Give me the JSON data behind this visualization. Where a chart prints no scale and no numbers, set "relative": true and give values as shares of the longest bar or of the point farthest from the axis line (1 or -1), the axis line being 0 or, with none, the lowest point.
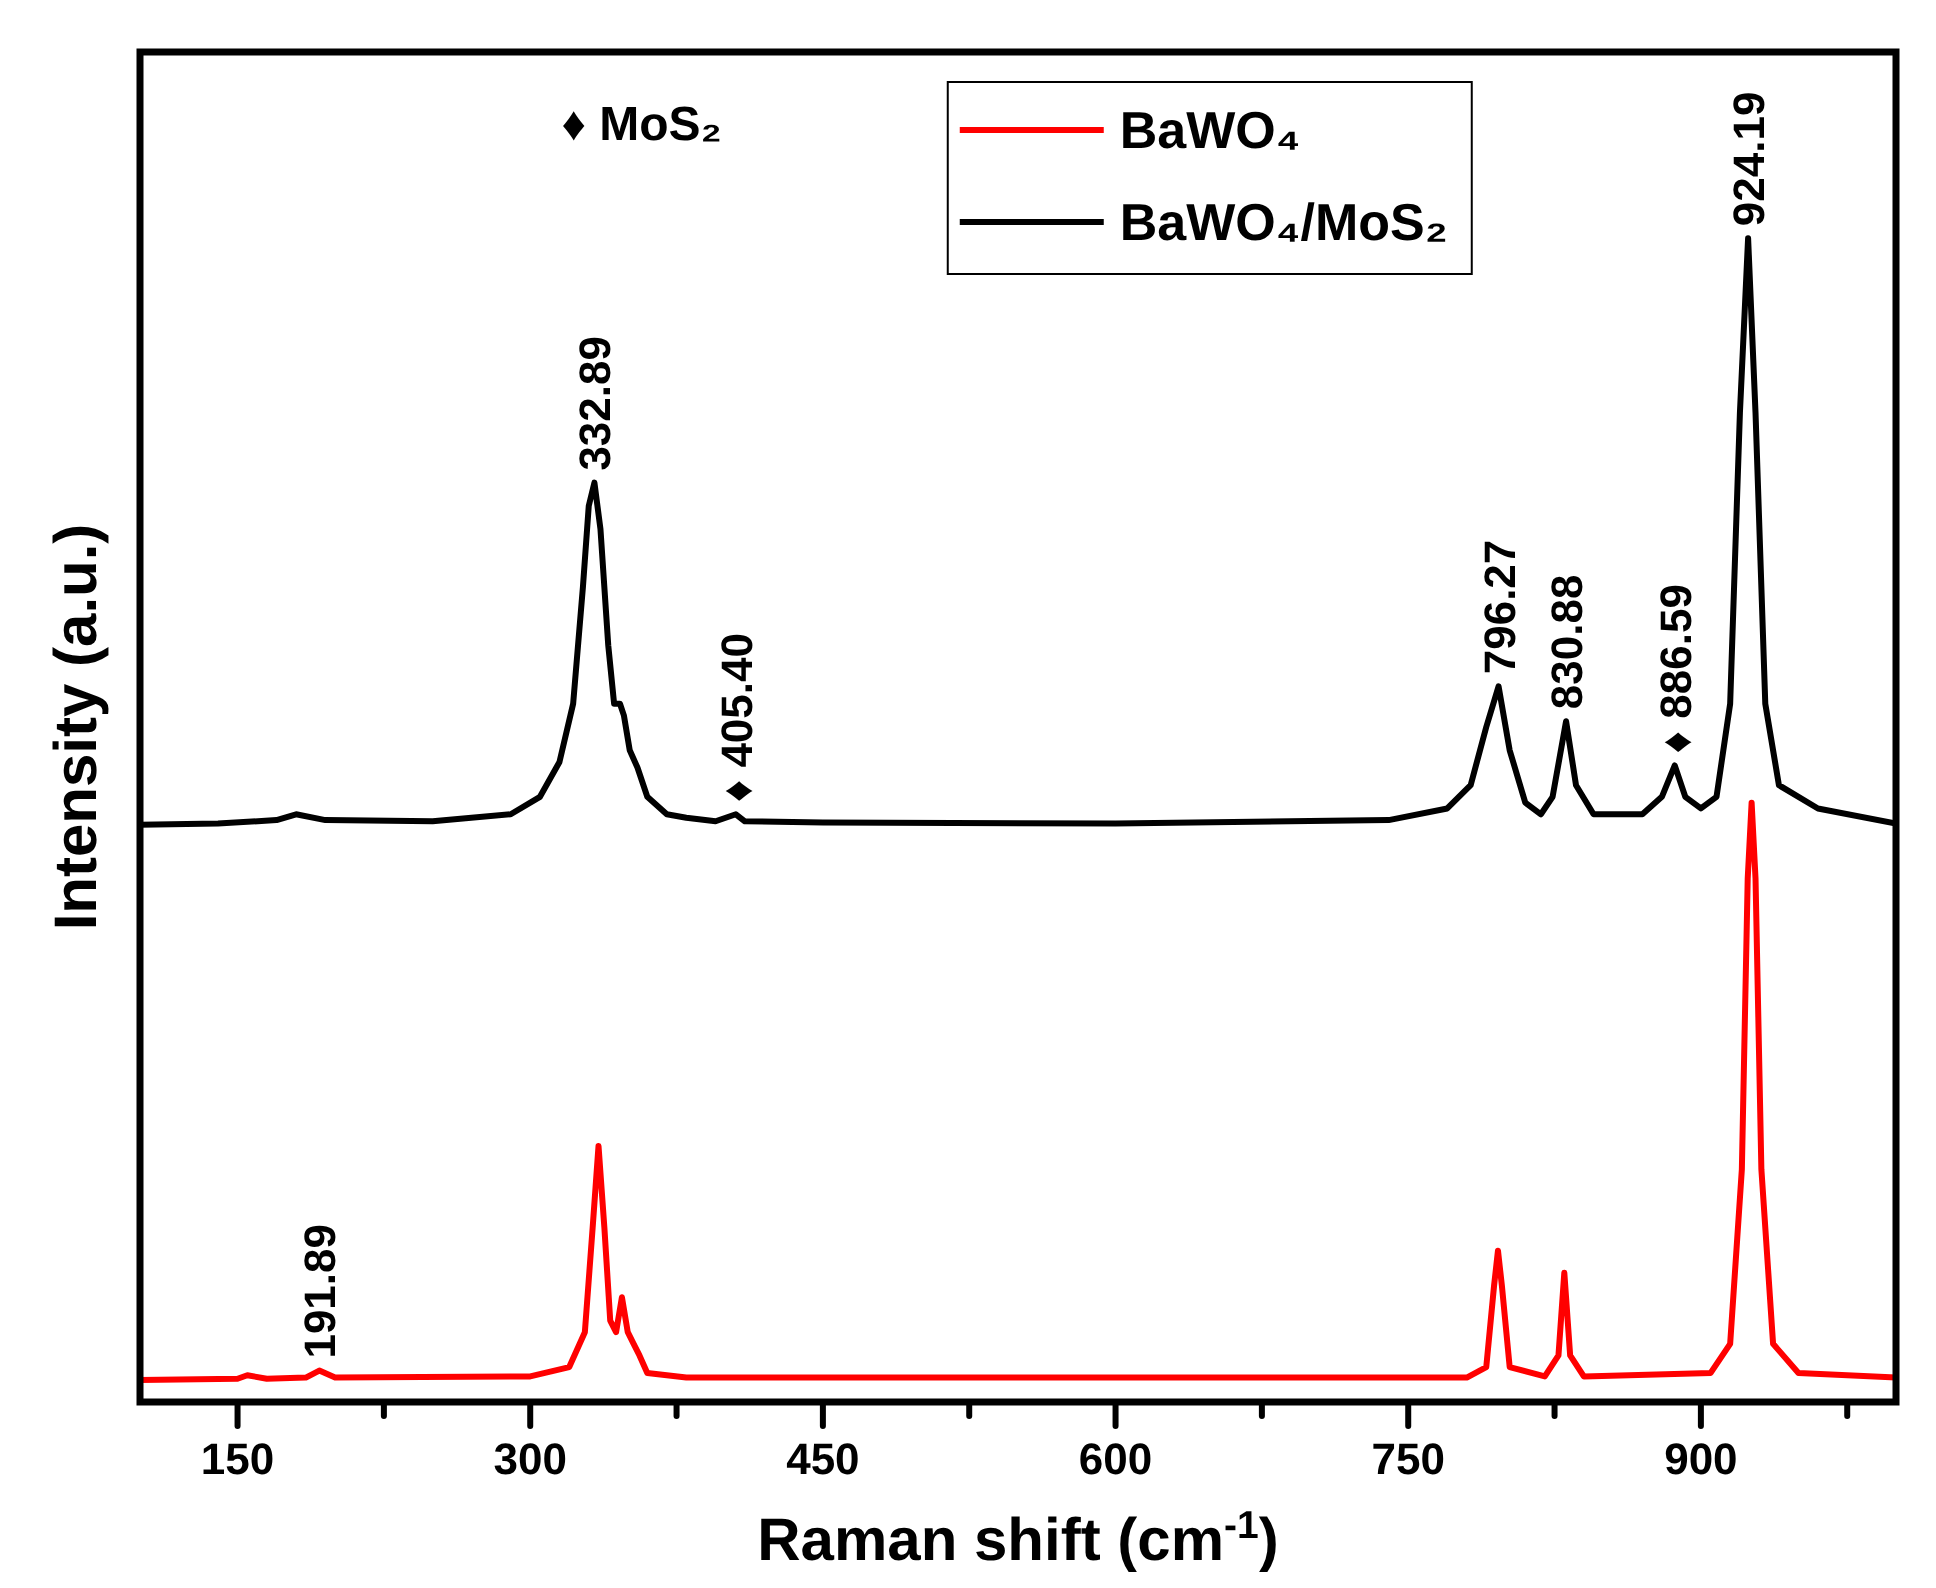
{
  "chart_data": {
    "type": "line",
    "relative": true,
    "xlabel": "Raman shift (cm$^{-1}$)",
    "ylabel": "Intensity (a.u.)",
    "legend": "top",
    "xlim": [
      100,
      1000
    ],
    "xticks": [
      150,
      {
        "value": 225,
        "label": null
      },
      300,
      {
        "value": 375,
        "label": null
      },
      450,
      {
        "value": 525,
        "label": null
      },
      600,
      {
        "value": 675,
        "label": null
      },
      750,
      {
        "value": 825,
        "label": null
      },
      900,
      {
        "value": 975,
        "label": null
      }
    ],
    "series": [
      {
        "name": "BaWO₄",
        "color": "#ff0000",
        "x": [
          100,
          150,
          155,
          165,
          185,
          191.9,
          200,
          300,
          320,
          328,
          332,
          335,
          338,
          341,
          344,
          347,
          350,
          353,
          356,
          360,
          380,
          780,
          790,
          794,
          796,
          798,
          802,
          820,
          827,
          830,
          833,
          840,
          905,
          915,
          921,
          924,
          926,
          928,
          931,
          937,
          950,
          1000
        ],
        "values": [
          0.019,
          0.02,
          0.023,
          0.02,
          0.021,
          0.027,
          0.021,
          0.022,
          0.03,
          0.06,
          0.15,
          0.22,
          0.15,
          0.07,
          0.06,
          0.09,
          0.06,
          0.05,
          0.04,
          0.025,
          0.021,
          0.021,
          0.03,
          0.1,
          0.13,
          0.1,
          0.03,
          0.022,
          0.04,
          0.111,
          0.04,
          0.022,
          0.025,
          0.05,
          0.2,
          0.45,
          0.515,
          0.45,
          0.2,
          0.05,
          0.025,
          0.021
        ]
      },
      {
        "name": "BaWO₄/MoS₂",
        "color": "#000000",
        "x": [
          100,
          140,
          170,
          180,
          195,
          250,
          290,
          305,
          315,
          322,
          327,
          330,
          332.9,
          336,
          340,
          343,
          346,
          348,
          351,
          355,
          360,
          370,
          380,
          395,
          405.4,
          410,
          450,
          600,
          740,
          770,
          782,
          790,
          796.3,
          802,
          810,
          818,
          824,
          830.9,
          836,
          845,
          870,
          880,
          886.6,
          892,
          900,
          908,
          915,
          920,
          924.2,
          928,
          933,
          940,
          960,
          1000
        ],
        "values": [
          0.496,
          0.497,
          0.5,
          0.505,
          0.5,
          0.499,
          0.505,
          0.52,
          0.55,
          0.6,
          0.7,
          0.77,
          0.79,
          0.75,
          0.65,
          0.6,
          0.6,
          0.59,
          0.56,
          0.545,
          0.52,
          0.505,
          0.502,
          0.499,
          0.505,
          0.499,
          0.498,
          0.497,
          0.5,
          0.51,
          0.53,
          0.58,
          0.615,
          0.56,
          0.515,
          0.505,
          0.52,
          0.585,
          0.53,
          0.505,
          0.505,
          0.52,
          0.547,
          0.52,
          0.51,
          0.52,
          0.6,
          0.85,
          1,
          0.85,
          0.6,
          0.53,
          0.51,
          0.497
        ]
      }
    ],
    "annotations": [
      "♦ MoS₂",
      {
        "text": "191.89",
        "x": 191.89,
        "y": 0.027
      },
      {
        "text": "332.89",
        "x": 332.89,
        "y": 0.79
      },
      {
        "text": "♦ 405.40",
        "x": 405.4,
        "y": 0.505
      },
      {
        "text": "796.27",
        "x": 796.27,
        "y": 0.615
      },
      {
        "text": "830.88",
        "x": 830.88,
        "y": 0.585
      },
      {
        "text": "♦ 886.59",
        "x": 886.59,
        "y": 0.547
      },
      {
        "text": "924.19",
        "x": 924.19,
        "y": 1
      }
    ]
  }
}
